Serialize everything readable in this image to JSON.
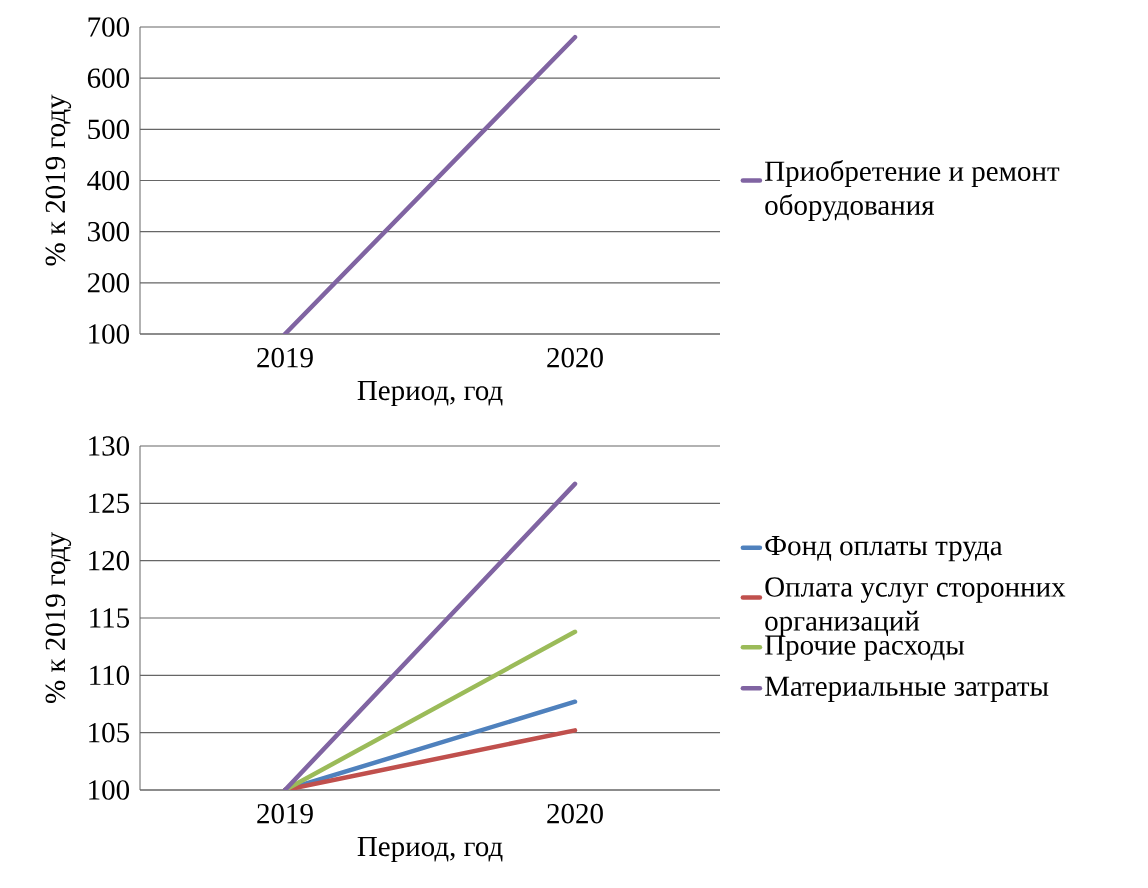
{
  "chart_data": [
    {
      "type": "line",
      "categories": [
        "2019",
        "2020"
      ],
      "xlabel": "Период, год",
      "ylabel": "% к 2019 году",
      "ylim": [
        100,
        700
      ],
      "yticks": [
        100,
        200,
        300,
        400,
        500,
        600,
        700
      ],
      "grid": "y",
      "legend": "right",
      "series": [
        {
          "name": "Приобретение и ремонт оборудования",
          "color": "#8064a2",
          "values": [
            100,
            680
          ]
        }
      ]
    },
    {
      "type": "line",
      "categories": [
        "2019",
        "2020"
      ],
      "xlabel": "Период, год",
      "ylabel": "% к 2019 году",
      "ylim": [
        100,
        130
      ],
      "yticks": [
        100,
        105,
        110,
        115,
        120,
        125,
        130
      ],
      "grid": "y",
      "legend": "right",
      "series": [
        {
          "name": "Фонд оплаты труда",
          "color": "#4f81bd",
          "values": [
            100,
            107.7
          ]
        },
        {
          "name": "Оплата услуг сторонних организаций",
          "color": "#c0504d",
          "values": [
            100,
            105.2
          ]
        },
        {
          "name": "Прочие расходы",
          "color": "#9bbb59",
          "values": [
            100,
            113.8
          ]
        },
        {
          "name": "Материальные затраты",
          "color": "#8064a2",
          "values": [
            100,
            126.7
          ]
        }
      ]
    }
  ]
}
